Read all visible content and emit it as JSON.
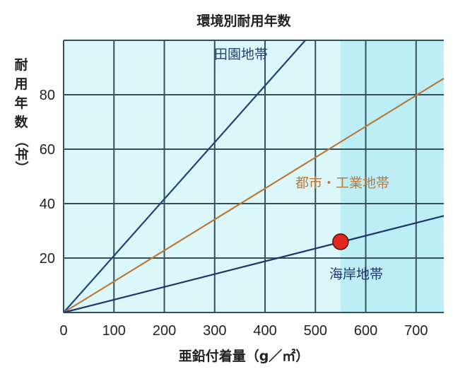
{
  "chart_data": {
    "type": "line",
    "title": "環境別耐用年数",
    "xlabel": "亜鉛付着量（g／㎡）",
    "ylabel": [
      "耐",
      "用",
      "年",
      "数",
      "（年）"
    ],
    "xlim": [
      0,
      755
    ],
    "ylim": [
      0,
      100
    ],
    "xticks": [
      0,
      100,
      200,
      300,
      400,
      500,
      600,
      700
    ],
    "yticks": [
      20,
      40,
      60,
      80
    ],
    "grid": true,
    "highlight_region_x": [
      550,
      755
    ],
    "series": [
      {
        "name": "田園地帯",
        "color": "#24407a",
        "points": [
          [
            0,
            0
          ],
          [
            480,
            100
          ]
        ]
      },
      {
        "name": "都市・工業地帯",
        "color": "#b87a3c",
        "points": [
          [
            0,
            0
          ],
          [
            755,
            86
          ]
        ]
      },
      {
        "name": "海岸地帯",
        "color": "#1e3670",
        "points": [
          [
            0,
            0
          ],
          [
            755,
            35.5
          ]
        ]
      }
    ],
    "marker": {
      "x": 550,
      "y": 26,
      "color": "#e0281e"
    }
  }
}
